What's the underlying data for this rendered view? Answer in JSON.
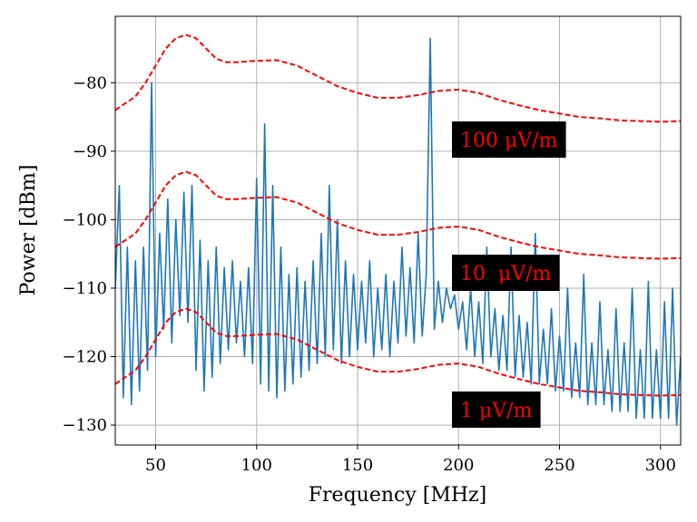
{
  "chart_data": {
    "type": "line",
    "xlabel": "Frequency [MHz]",
    "ylabel": "Power [dBm]",
    "xlim": [
      30,
      310
    ],
    "ylim": [
      -132.9,
      -70.3
    ],
    "xticks": [
      50,
      100,
      150,
      200,
      250,
      300
    ],
    "yticks": [
      {
        "value": -130,
        "label": "−130"
      },
      {
        "value": -120,
        "label": "−120"
      },
      {
        "value": -110,
        "label": "−110"
      },
      {
        "value": -100,
        "label": "−100"
      },
      {
        "value": -90,
        "label": "−90"
      },
      {
        "value": -80,
        "label": "−80"
      }
    ],
    "grid": true,
    "series": [
      {
        "color": "#1f77b4",
        "style": "solid",
        "x": [
          30,
          32,
          34,
          36,
          38,
          40,
          42,
          44,
          46,
          48,
          50,
          52,
          54,
          56,
          58,
          60,
          62,
          64,
          66,
          68,
          70,
          72,
          74,
          76,
          78,
          80,
          82,
          84,
          86,
          88,
          90,
          92,
          94,
          96,
          98,
          100,
          102,
          104,
          106,
          108,
          110,
          112,
          114,
          116,
          118,
          120,
          122,
          124,
          126,
          128,
          130,
          132,
          134,
          136,
          138,
          140,
          142,
          144,
          146,
          148,
          150,
          152,
          154,
          156,
          158,
          160,
          162,
          164,
          166,
          168,
          170,
          172,
          174,
          176,
          178,
          180,
          182,
          184,
          186,
          188,
          190,
          192,
          194,
          196,
          198,
          200,
          202,
          204,
          206,
          208,
          210,
          212,
          214,
          216,
          218,
          220,
          222,
          224,
          226,
          228,
          230,
          232,
          234,
          236,
          238,
          240,
          242,
          244,
          246,
          248,
          250,
          252,
          254,
          256,
          258,
          260,
          262,
          264,
          266,
          268,
          270,
          272,
          274,
          276,
          278,
          280,
          282,
          284,
          286,
          288,
          290,
          292,
          294,
          296,
          298,
          300,
          302,
          304,
          306,
          308,
          310
        ],
        "values": [
          -110,
          -95,
          -126,
          -104,
          -127,
          -106,
          -125,
          -104,
          -122,
          -80,
          -120,
          -102,
          -116,
          -97,
          -118,
          -100,
          -114,
          -96,
          -115,
          -95,
          -122,
          -103,
          -125,
          -106,
          -123,
          -104,
          -121,
          -107,
          -119,
          -106,
          -118,
          -109,
          -120,
          -107,
          -121,
          -94,
          -124,
          -86,
          -125,
          -95,
          -126,
          -104,
          -125,
          -108,
          -124,
          -107,
          -123,
          -109,
          -122,
          -106,
          -121,
          -102,
          -120,
          -95,
          -119,
          -100,
          -121,
          -106,
          -120,
          -108,
          -119,
          -109,
          -118,
          -106,
          -120,
          -110,
          -119,
          -108,
          -120,
          -109,
          -118,
          -104,
          -117,
          -107,
          -118,
          -102,
          -117,
          -108,
          -73.5,
          -116,
          -109,
          -115,
          -110,
          -113,
          -111,
          -116,
          -112,
          -119,
          -110,
          -120,
          -112,
          -121,
          -104,
          -120,
          -113,
          -122,
          -114,
          -122,
          -104,
          -123,
          -114,
          -123,
          -115,
          -124,
          -102,
          -124,
          -116,
          -124,
          -113,
          -125,
          -117,
          -125,
          -110,
          -126,
          -118,
          -126,
          -108,
          -127,
          -118,
          -127,
          -112,
          -127,
          -119,
          -128,
          -113,
          -128,
          -118,
          -128,
          -110,
          -129,
          -119,
          -129,
          -109,
          -129,
          -119,
          -129,
          -112,
          -129,
          -110,
          -130,
          -120
        ]
      },
      {
        "color": "#ff0000",
        "style": "dashed",
        "x": [
          30,
          35,
          40,
          45,
          50,
          55,
          60,
          65,
          70,
          75,
          80,
          85,
          90,
          100,
          110,
          120,
          130,
          140,
          150,
          160,
          170,
          180,
          190,
          200,
          210,
          220,
          230,
          240,
          250,
          260,
          270,
          280,
          290,
          300,
          310
        ],
        "values": [
          -84,
          -83,
          -82,
          -80,
          -77.5,
          -75,
          -73.5,
          -73,
          -73.5,
          -75,
          -76.5,
          -77,
          -77,
          -76.8,
          -76.7,
          -77.5,
          -79,
          -80.5,
          -81.5,
          -82.2,
          -82.2,
          -81.8,
          -81.2,
          -81,
          -81.5,
          -82.5,
          -83.3,
          -84,
          -84.5,
          -85,
          -85.2,
          -85.5,
          -85.6,
          -85.7,
          -85.6
        ]
      },
      {
        "color": "#ff0000",
        "style": "dashed",
        "x": [
          30,
          35,
          40,
          45,
          50,
          55,
          60,
          65,
          70,
          75,
          80,
          85,
          90,
          100,
          110,
          120,
          130,
          140,
          150,
          160,
          170,
          180,
          190,
          200,
          210,
          220,
          230,
          240,
          250,
          260,
          270,
          280,
          290,
          300,
          310
        ],
        "values": [
          -104,
          -103,
          -102,
          -100,
          -97.5,
          -95,
          -93.5,
          -93,
          -93.5,
          -95,
          -96.5,
          -97,
          -97,
          -96.8,
          -96.7,
          -97.5,
          -99,
          -100.5,
          -101.5,
          -102.2,
          -102.2,
          -101.8,
          -101.2,
          -101,
          -101.5,
          -102.5,
          -103.3,
          -104,
          -104.5,
          -105,
          -105.2,
          -105.5,
          -105.6,
          -105.7,
          -105.6
        ]
      },
      {
        "color": "#ff0000",
        "style": "dashed",
        "x": [
          30,
          35,
          40,
          45,
          50,
          55,
          60,
          65,
          70,
          75,
          80,
          85,
          90,
          100,
          110,
          120,
          130,
          140,
          150,
          160,
          170,
          180,
          190,
          200,
          210,
          220,
          230,
          240,
          250,
          260,
          270,
          280,
          290,
          300,
          310
        ],
        "values": [
          -124,
          -123,
          -122,
          -120,
          -117.5,
          -115,
          -113.5,
          -113,
          -113.5,
          -115,
          -116.5,
          -117,
          -117,
          -116.8,
          -116.7,
          -117.5,
          -119,
          -120.5,
          -121.5,
          -122.2,
          -122.2,
          -121.8,
          -121.2,
          -121,
          -121.5,
          -122.5,
          -123.3,
          -124,
          -124.5,
          -125,
          -125.2,
          -125.5,
          -125.6,
          -125.7,
          -125.6
        ]
      }
    ],
    "annotations": [
      {
        "text": "100 μV/m",
        "color": "#ff0000",
        "background": "#000000"
      },
      {
        "text": "10  μV/m",
        "color": "#ff0000",
        "background": "#000000"
      },
      {
        "text": "1 μV/m",
        "color": "#ff0000",
        "background": "#000000"
      }
    ]
  }
}
